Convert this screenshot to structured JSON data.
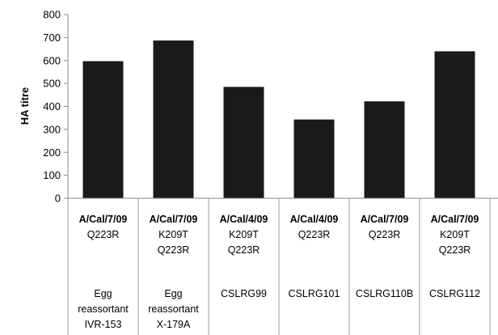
{
  "chart_data": {
    "type": "bar",
    "title": "",
    "ylabel": "HA titre",
    "xlabel": "",
    "ylim": [
      0,
      800
    ],
    "yticks": [
      0,
      100,
      200,
      300,
      400,
      500,
      600,
      700,
      800
    ],
    "bar_color": "#1a1a1a",
    "grid": false,
    "categories": [
      {
        "virus": "A/Cal/7/09",
        "mutations": [
          "Q223R"
        ],
        "description": [
          "Egg",
          "reassortant",
          "IVR-153"
        ]
      },
      {
        "virus": "A/Cal/7/09",
        "mutations": [
          "K209T",
          "Q223R"
        ],
        "description": [
          "Egg",
          "reassortant",
          "X-179A"
        ]
      },
      {
        "virus": "A/Cal/4/09",
        "mutations": [
          "K209T",
          "Q223R"
        ],
        "description": [
          "CSLRG99"
        ]
      },
      {
        "virus": "A/Cal/4/09",
        "mutations": [
          "Q223R"
        ],
        "description": [
          "CSLRG101"
        ]
      },
      {
        "virus": "A/Cal/7/09",
        "mutations": [
          "Q223R"
        ],
        "description": [
          "CSLRG110B"
        ]
      },
      {
        "virus": "A/Cal/7/09",
        "mutations": [
          "K209T",
          "Q223R"
        ],
        "description": [
          "CSLRG112"
        ]
      }
    ],
    "values": [
      597,
      687,
      485,
      343,
      422,
      640
    ]
  }
}
